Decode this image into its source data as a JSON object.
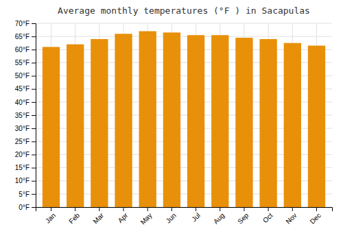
{
  "chart_data": {
    "type": "bar",
    "title": "Average monthly temperatures (°F ) in Sacapulas",
    "categories": [
      "Jan",
      "Feb",
      "Mar",
      "Apr",
      "May",
      "Jun",
      "Jul",
      "Aug",
      "Sep",
      "Oct",
      "Nov",
      "Dec"
    ],
    "values": [
      61,
      62,
      64,
      66,
      67,
      66.5,
      65.5,
      65.5,
      64.5,
      64,
      62.5,
      61.5
    ],
    "color": "#E8900A",
    "ylim": [
      0,
      70
    ],
    "yticks": [
      {
        "value": 0,
        "label": "0°F"
      },
      {
        "value": 5,
        "label": "5°F"
      },
      {
        "value": 10,
        "label": "10°F"
      },
      {
        "value": 15,
        "label": "15°F"
      },
      {
        "value": 20,
        "label": "20°F"
      },
      {
        "value": 25,
        "label": "25°F"
      },
      {
        "value": 30,
        "label": "30°F"
      },
      {
        "value": 35,
        "label": "35°F"
      },
      {
        "value": 40,
        "label": "40°F"
      },
      {
        "value": 45,
        "label": "45°F"
      },
      {
        "value": 50,
        "label": "50°F"
      },
      {
        "value": 55,
        "label": "55°F"
      },
      {
        "value": 60,
        "label": "60°F"
      },
      {
        "value": 65,
        "label": "65°F"
      },
      {
        "value": 70,
        "label": "70°F"
      }
    ],
    "grid": true
  }
}
